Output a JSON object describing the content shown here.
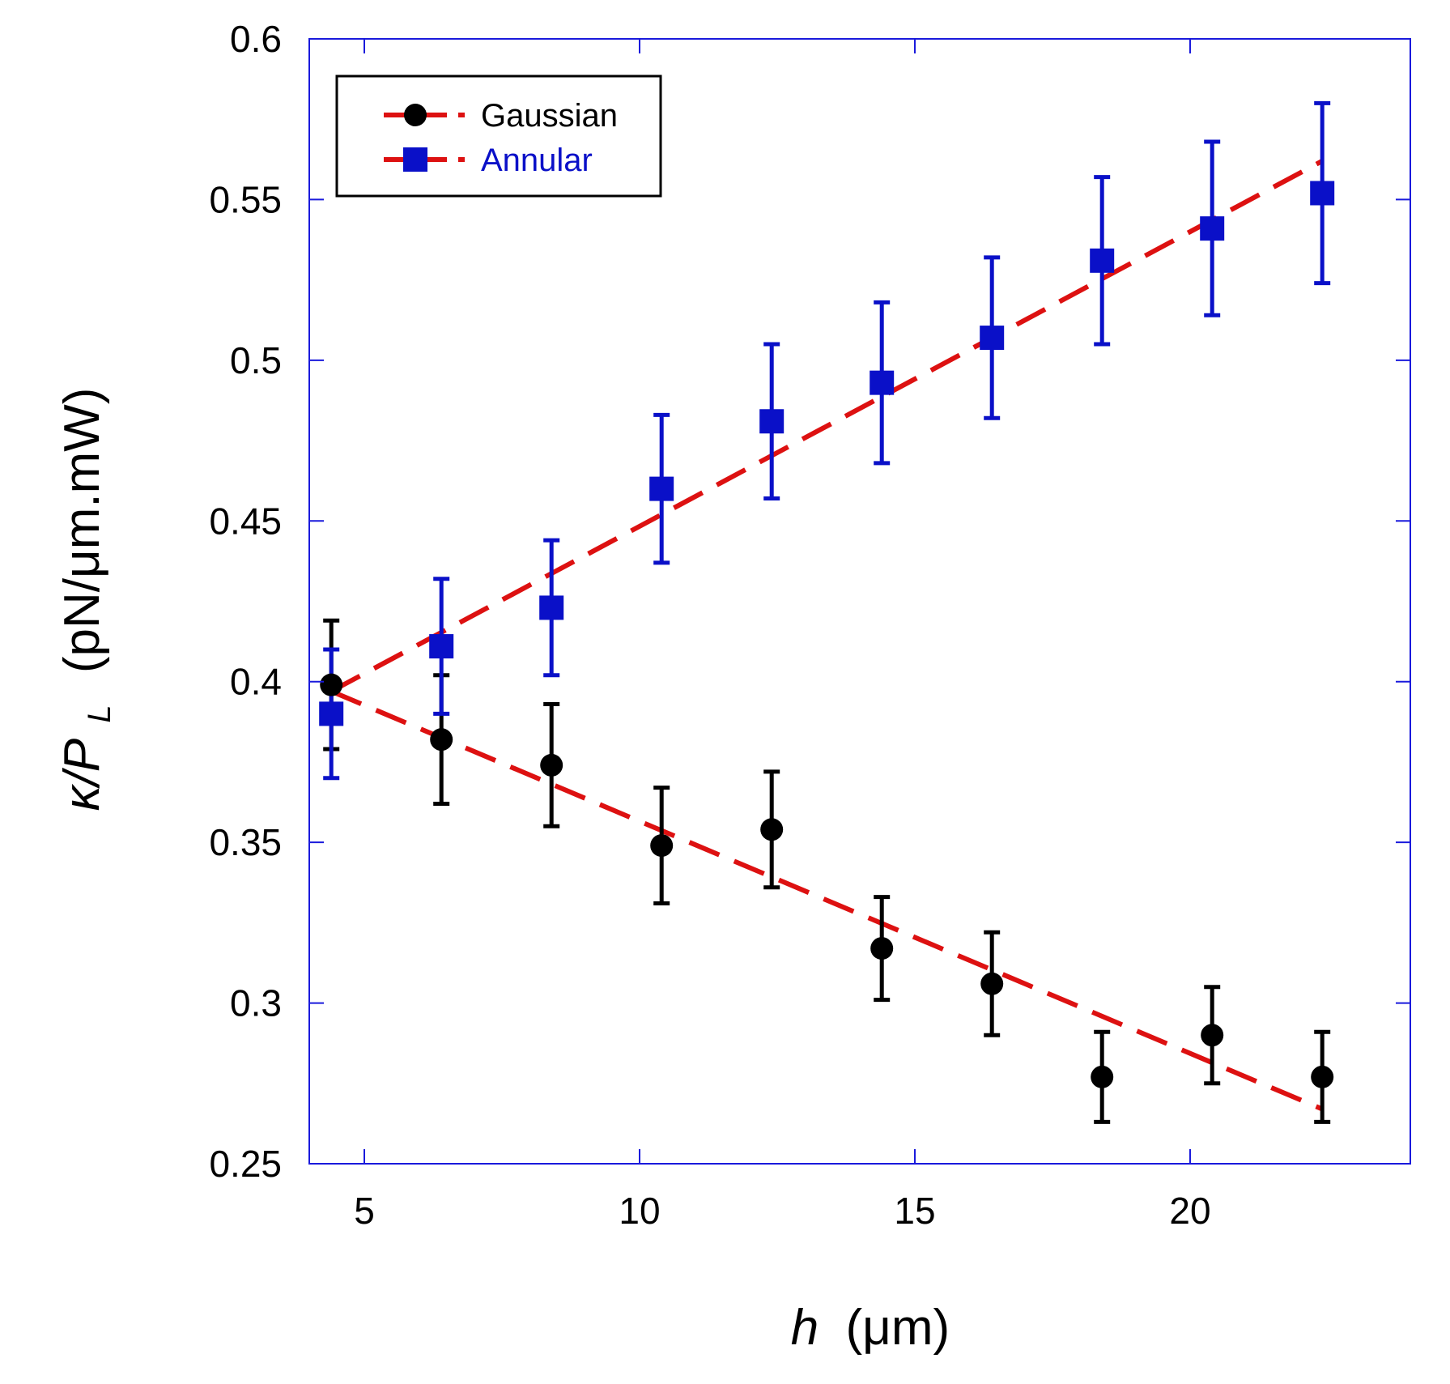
{
  "chart_data": {
    "type": "scatter",
    "title": "",
    "xlabel": {
      "var": "h",
      "unit": "(μm)"
    },
    "ylabel": {
      "var": "κ/P",
      "sub": "L",
      "unit": "(pN/μm.mW)"
    },
    "xlim": [
      4,
      24
    ],
    "ylim": [
      0.25,
      0.6
    ],
    "xticks": [
      5,
      10,
      15,
      20
    ],
    "xtick_labels": [
      "5",
      "10",
      "15",
      "20"
    ],
    "yticks": [
      0.25,
      0.3,
      0.35,
      0.4,
      0.45,
      0.5,
      0.55,
      0.6
    ],
    "ytick_labels": [
      "0.25",
      "0.3",
      "0.35",
      "0.4",
      "0.45",
      "0.5",
      "0.55",
      "0.6"
    ],
    "grid": false,
    "legend_position": "top-left",
    "series": [
      {
        "name": "Gaussian",
        "marker": "circle",
        "color": "#000000",
        "legend_text_color": "#000000",
        "errorbar_color": "#000000",
        "x": [
          4.4,
          6.4,
          8.4,
          10.4,
          12.4,
          14.4,
          16.4,
          18.4,
          20.4,
          22.4
        ],
        "y": [
          0.399,
          0.382,
          0.374,
          0.349,
          0.354,
          0.317,
          0.306,
          0.277,
          0.29,
          0.277
        ],
        "err": [
          0.02,
          0.02,
          0.019,
          0.018,
          0.018,
          0.016,
          0.016,
          0.014,
          0.015,
          0.014
        ],
        "fit": {
          "x": [
            4.4,
            22.4
          ],
          "y": [
            0.397,
            0.267
          ],
          "color": "#dd1111",
          "style": "dashed"
        }
      },
      {
        "name": "Annular",
        "marker": "square",
        "color": "#0a10c8",
        "legend_text_color": "#0a10c8",
        "errorbar_color": "#0a10c8",
        "x": [
          4.4,
          6.4,
          8.4,
          10.4,
          12.4,
          14.4,
          16.4,
          18.4,
          20.4,
          22.4
        ],
        "y": [
          0.39,
          0.411,
          0.423,
          0.46,
          0.481,
          0.493,
          0.507,
          0.531,
          0.541,
          0.552
        ],
        "err": [
          0.02,
          0.021,
          0.021,
          0.023,
          0.024,
          0.025,
          0.025,
          0.026,
          0.027,
          0.028
        ],
        "fit": {
          "x": [
            4.4,
            22.4
          ],
          "y": [
            0.397,
            0.562
          ],
          "color": "#dd1111",
          "style": "dashed"
        }
      }
    ],
    "colors": {
      "axes": "#1a1adc",
      "fit": "#dd1111",
      "legend_border": "#000000"
    }
  }
}
